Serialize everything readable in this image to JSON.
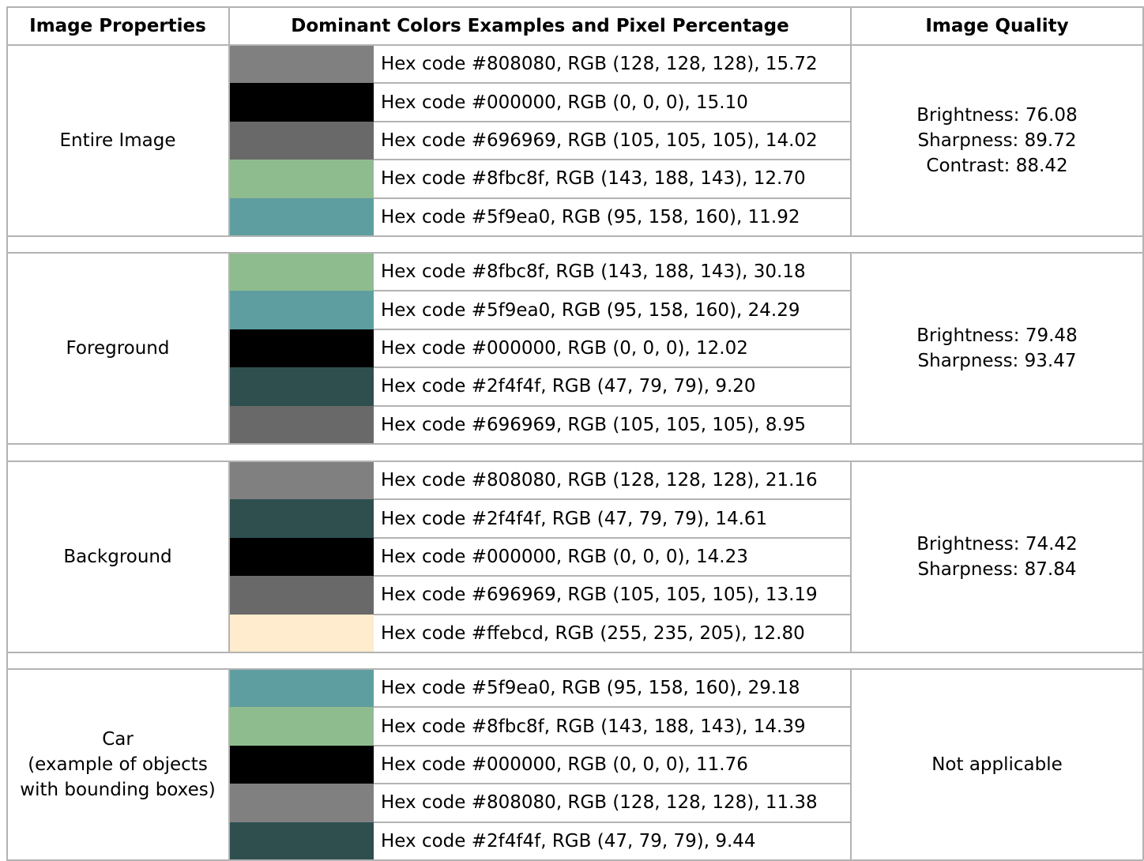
{
  "header": {
    "col1": "Image Properties",
    "col2": "Dominant Colors Examples and Pixel Percentage",
    "col3": "Image Quality"
  },
  "groups": [
    {
      "label": [
        "Entire Image"
      ],
      "quality": [
        "Brightness: 76.08",
        "Sharpness: 89.72",
        "Contrast: 88.42"
      ],
      "colors": [
        {
          "swatch": "#808080",
          "text": "Hex code #808080, RGB (128, 128, 128), 15.72"
        },
        {
          "swatch": "#000000",
          "text": "Hex code #000000, RGB (0, 0, 0), 15.10"
        },
        {
          "swatch": "#696969",
          "text": "Hex code #696969, RGB (105, 105, 105), 14.02"
        },
        {
          "swatch": "#8fbc8f",
          "text": "Hex code #8fbc8f, RGB (143, 188, 143), 12.70"
        },
        {
          "swatch": "#5f9ea0",
          "text": "Hex code #5f9ea0, RGB (95, 158, 160), 11.92"
        }
      ]
    },
    {
      "label": [
        "Foreground"
      ],
      "quality": [
        "Brightness: 79.48",
        "Sharpness: 93.47"
      ],
      "colors": [
        {
          "swatch": "#8fbc8f",
          "text": "Hex code #8fbc8f, RGB (143, 188, 143), 30.18"
        },
        {
          "swatch": "#5f9ea0",
          "text": "Hex code #5f9ea0, RGB (95, 158, 160), 24.29"
        },
        {
          "swatch": "#000000",
          "text": "Hex code #000000, RGB (0, 0, 0), 12.02"
        },
        {
          "swatch": "#2f4f4f",
          "text": "Hex code #2f4f4f, RGB (47, 79, 79), 9.20"
        },
        {
          "swatch": "#696969",
          "text": "Hex code #696969, RGB (105, 105, 105), 8.95"
        }
      ]
    },
    {
      "label": [
        "Background"
      ],
      "quality": [
        "Brightness: 74.42",
        "Sharpness: 87.84"
      ],
      "colors": [
        {
          "swatch": "#808080",
          "text": "Hex code #808080, RGB (128, 128, 128), 21.16"
        },
        {
          "swatch": "#2f4f4f",
          "text": "Hex code #2f4f4f, RGB (47, 79, 79), 14.61"
        },
        {
          "swatch": "#000000",
          "text": "Hex code #000000, RGB (0, 0, 0), 14.23"
        },
        {
          "swatch": "#696969",
          "text": "Hex code #696969, RGB (105, 105, 105), 13.19"
        },
        {
          "swatch": "#ffebcd",
          "text": "Hex code #ffebcd, RGB (255, 235, 205), 12.80"
        }
      ]
    },
    {
      "label": [
        "Car",
        "(example of objects",
        "with bounding boxes)"
      ],
      "quality": [
        "Not applicable"
      ],
      "colors": [
        {
          "swatch": "#5f9ea0",
          "text": "Hex code #5f9ea0, RGB (95, 158, 160), 29.18"
        },
        {
          "swatch": "#8fbc8f",
          "text": "Hex code #8fbc8f, RGB (143, 188, 143), 14.39"
        },
        {
          "swatch": "#000000",
          "text": "Hex code #000000, RGB (0, 0, 0), 11.76"
        },
        {
          "swatch": "#808080",
          "text": "Hex code #808080, RGB (128, 128, 128), 11.38"
        },
        {
          "swatch": "#2f4f4f",
          "text": "Hex code #2f4f4f, RGB (47, 79, 79), 9.44"
        }
      ]
    }
  ]
}
